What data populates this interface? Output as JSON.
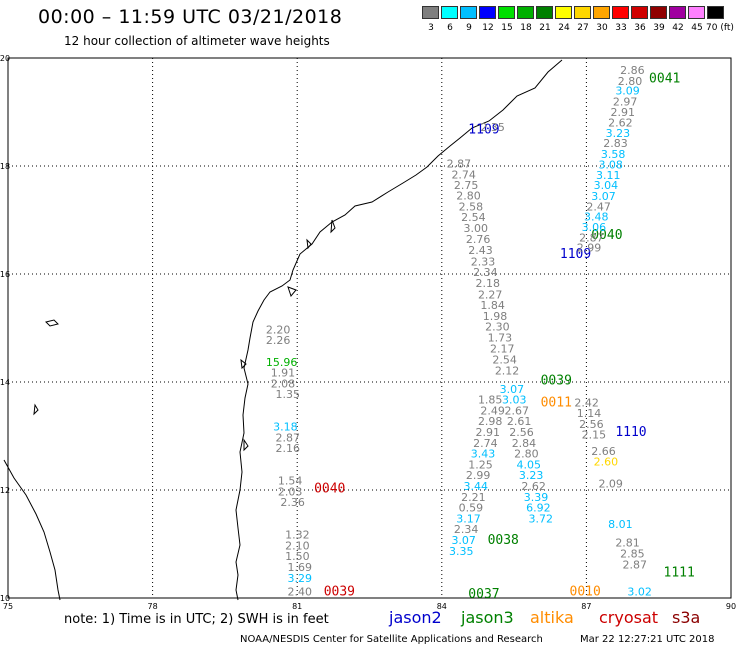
{
  "header": {
    "title": "00:00 – 11:59 UTC 03/21/2018",
    "subtitle": "12 hour collection of altimeter wave heights"
  },
  "color_scale": {
    "labels": [
      "3",
      "6",
      "9",
      "12",
      "15",
      "18",
      "21",
      "24",
      "27",
      "30",
      "33",
      "36",
      "39",
      "42",
      "45",
      "70 (ft)"
    ],
    "colors": [
      "#7f7f7f",
      "#00ffff",
      "#00bfff",
      "#0000ff",
      "#00e000",
      "#00b000",
      "#008000",
      "#ffff00",
      "#ffd700",
      "#ffa500",
      "#ff0000",
      "#d00000",
      "#900000",
      "#a000a0",
      "#ff80ff",
      "#000000"
    ]
  },
  "legend": {
    "jason2": "jason2",
    "jason3": "jason3",
    "altika": "altika",
    "cryosat": "cryosat",
    "s3a": "s3a",
    "colors": {
      "jason2": "#0000cc",
      "jason3": "#008000",
      "altika": "#ff8c00",
      "cryosat": "#cc0000",
      "s3a": "#8b0000"
    }
  },
  "note": "note: 1) Time is in UTC; 2) SWH is in feet",
  "footer": {
    "left": "NOAA/NESDIS Center for Satellite Applications and Research",
    "right": "Mar 22 12:27:21 UTC 2018"
  },
  "chart_data": {
    "type": "map",
    "x_ticks": [
      "75",
      "78",
      "81",
      "84",
      "87",
      "90"
    ],
    "y_ticks": [
      "10",
      "12",
      "14",
      "16",
      "18",
      "20"
    ],
    "xlim": [
      75,
      90
    ],
    "ylim": [
      10,
      20
    ],
    "grid": true,
    "track_labels": [
      {
        "text": "0041",
        "color": "#008000",
        "lon": 88.3,
        "lat": 19.55
      },
      {
        "text": "1109",
        "color": "#0000cc",
        "lon": 84.55,
        "lat": 18.6
      },
      {
        "text": "0040",
        "color": "#008000",
        "lon": 87.1,
        "lat": 16.65
      },
      {
        "text": "1109",
        "color": "#0000cc",
        "lon": 86.45,
        "lat": 16.3
      },
      {
        "text": "0039",
        "color": "#008000",
        "lon": 86.05,
        "lat": 13.95
      },
      {
        "text": "0011",
        "color": "#ff8c00",
        "lon": 86.05,
        "lat": 13.55
      },
      {
        "text": "1110",
        "color": "#0000cc",
        "lon": 87.6,
        "lat": 13.0
      },
      {
        "text": "0040",
        "color": "#cc0000",
        "lon": 81.35,
        "lat": 11.95
      },
      {
        "text": "0038",
        "color": "#008000",
        "lon": 84.95,
        "lat": 11.0
      },
      {
        "text": "1111",
        "color": "#008000",
        "lon": 88.6,
        "lat": 10.4
      },
      {
        "text": "0039",
        "color": "#cc0000",
        "lon": 81.55,
        "lat": 10.05
      },
      {
        "text": "0037",
        "color": "#008000",
        "lon": 84.55,
        "lat": 10.0
      },
      {
        "text": "0010",
        "color": "#ff8c00",
        "lon": 86.65,
        "lat": 10.05
      }
    ],
    "swh_values": [
      {
        "text": "2.86",
        "color": "#7f7f7f",
        "lon": 87.7,
        "lat": 19.7
      },
      {
        "text": "2.80",
        "color": "#7f7f7f",
        "lon": 87.65,
        "lat": 19.5
      },
      {
        "text": "3.09",
        "color": "#00bfff",
        "lon": 87.6,
        "lat": 19.32
      },
      {
        "text": "2.97",
        "color": "#7f7f7f",
        "lon": 87.55,
        "lat": 19.12
      },
      {
        "text": "2.91",
        "color": "#7f7f7f",
        "lon": 87.5,
        "lat": 18.93
      },
      {
        "text": "2.62",
        "color": "#7f7f7f",
        "lon": 87.45,
        "lat": 18.73
      },
      {
        "text": "3.23",
        "color": "#00bfff",
        "lon": 87.4,
        "lat": 18.54
      },
      {
        "text": "2.83",
        "color": "#7f7f7f",
        "lon": 87.35,
        "lat": 18.35
      },
      {
        "text": "3.58",
        "color": "#00bfff",
        "lon": 87.3,
        "lat": 18.15
      },
      {
        "text": "3.08",
        "color": "#00bfff",
        "lon": 87.25,
        "lat": 17.95
      },
      {
        "text": "3.11",
        "color": "#00bfff",
        "lon": 87.2,
        "lat": 17.76
      },
      {
        "text": "3.04",
        "color": "#00bfff",
        "lon": 87.15,
        "lat": 17.57
      },
      {
        "text": "3.07",
        "color": "#00bfff",
        "lon": 87.1,
        "lat": 17.37
      },
      {
        "text": "2.47",
        "color": "#7f7f7f",
        "lon": 87.0,
        "lat": 17.18
      },
      {
        "text": "3.48",
        "color": "#00bfff",
        "lon": 86.95,
        "lat": 16.99
      },
      {
        "text": "3.06",
        "color": "#00bfff",
        "lon": 86.9,
        "lat": 16.8
      },
      {
        "text": "2.87",
        "color": "#7f7f7f",
        "lon": 86.85,
        "lat": 16.6
      },
      {
        "text": "2.99",
        "color": "#7f7f7f",
        "lon": 86.8,
        "lat": 16.42
      },
      {
        "text": "2.35",
        "color": "#7f7f7f",
        "lon": 84.8,
        "lat": 18.65
      },
      {
        "text": "2.87",
        "color": "#7f7f7f",
        "lon": 84.1,
        "lat": 17.97
      },
      {
        "text": "2.74",
        "color": "#7f7f7f",
        "lon": 84.2,
        "lat": 17.77
      },
      {
        "text": "2.75",
        "color": "#7f7f7f",
        "lon": 84.25,
        "lat": 17.57
      },
      {
        "text": "2.80",
        "color": "#7f7f7f",
        "lon": 84.3,
        "lat": 17.38
      },
      {
        "text": "2.58",
        "color": "#7f7f7f",
        "lon": 84.35,
        "lat": 17.18
      },
      {
        "text": "2.54",
        "color": "#7f7f7f",
        "lon": 84.4,
        "lat": 16.98
      },
      {
        "text": "3.00",
        "color": "#7f7f7f",
        "lon": 84.45,
        "lat": 16.78
      },
      {
        "text": "2.76",
        "color": "#7f7f7f",
        "lon": 84.5,
        "lat": 16.57
      },
      {
        "text": "2.43",
        "color": "#7f7f7f",
        "lon": 84.55,
        "lat": 16.37
      },
      {
        "text": "2.33",
        "color": "#7f7f7f",
        "lon": 84.6,
        "lat": 16.16
      },
      {
        "text": "2.34",
        "color": "#7f7f7f",
        "lon": 84.65,
        "lat": 15.96
      },
      {
        "text": "2.18",
        "color": "#7f7f7f",
        "lon": 84.7,
        "lat": 15.76
      },
      {
        "text": "2.27",
        "color": "#7f7f7f",
        "lon": 84.75,
        "lat": 15.55
      },
      {
        "text": "1.84",
        "color": "#7f7f7f",
        "lon": 84.8,
        "lat": 15.35
      },
      {
        "text": "1.98",
        "color": "#7f7f7f",
        "lon": 84.85,
        "lat": 15.15
      },
      {
        "text": "2.30",
        "color": "#7f7f7f",
        "lon": 84.9,
        "lat": 14.95
      },
      {
        "text": "1.73",
        "color": "#7f7f7f",
        "lon": 84.95,
        "lat": 14.75
      },
      {
        "text": "2.17",
        "color": "#7f7f7f",
        "lon": 85.0,
        "lat": 14.55
      },
      {
        "text": "2.54",
        "color": "#7f7f7f",
        "lon": 85.05,
        "lat": 14.34
      },
      {
        "text": "2.12",
        "color": "#7f7f7f",
        "lon": 85.1,
        "lat": 14.14
      },
      {
        "text": "1.85",
        "color": "#7f7f7f",
        "lon": 84.75,
        "lat": 13.6
      },
      {
        "text": "2.49",
        "color": "#7f7f7f",
        "lon": 84.8,
        "lat": 13.4
      },
      {
        "text": "2.98",
        "color": "#7f7f7f",
        "lon": 84.75,
        "lat": 13.2
      },
      {
        "text": "2.91",
        "color": "#7f7f7f",
        "lon": 84.7,
        "lat": 13.0
      },
      {
        "text": "2.74",
        "color": "#7f7f7f",
        "lon": 84.65,
        "lat": 12.8
      },
      {
        "text": "3.43",
        "color": "#00bfff",
        "lon": 84.6,
        "lat": 12.6
      },
      {
        "text": "1.25",
        "color": "#7f7f7f",
        "lon": 84.55,
        "lat": 12.4
      },
      {
        "text": "2.99",
        "color": "#7f7f7f",
        "lon": 84.5,
        "lat": 12.2
      },
      {
        "text": "3.44",
        "color": "#00bfff",
        "lon": 84.45,
        "lat": 12.0
      },
      {
        "text": "2.21",
        "color": "#7f7f7f",
        "lon": 84.4,
        "lat": 11.8
      },
      {
        "text": "0.59",
        "color": "#7f7f7f",
        "lon": 84.35,
        "lat": 11.6
      },
      {
        "text": "3.17",
        "color": "#00bfff",
        "lon": 84.3,
        "lat": 11.4
      },
      {
        "text": "2.34",
        "color": "#7f7f7f",
        "lon": 84.25,
        "lat": 11.2
      },
      {
        "text": "3.07",
        "color": "#00bfff",
        "lon": 84.2,
        "lat": 11.0
      },
      {
        "text": "3.35",
        "color": "#00bfff",
        "lon": 84.15,
        "lat": 10.8
      },
      {
        "text": "3.07",
        "color": "#00bfff",
        "lon": 85.2,
        "lat": 13.8
      },
      {
        "text": "3.03",
        "color": "#00bfff",
        "lon": 85.25,
        "lat": 13.6
      },
      {
        "text": "2.67",
        "color": "#7f7f7f",
        "lon": 85.3,
        "lat": 13.4
      },
      {
        "text": "2.61",
        "color": "#7f7f7f",
        "lon": 85.35,
        "lat": 13.2
      },
      {
        "text": "2.56",
        "color": "#7f7f7f",
        "lon": 85.4,
        "lat": 13.0
      },
      {
        "text": "2.84",
        "color": "#7f7f7f",
        "lon": 85.45,
        "lat": 12.8
      },
      {
        "text": "2.80",
        "color": "#7f7f7f",
        "lon": 85.5,
        "lat": 12.6
      },
      {
        "text": "4.05",
        "color": "#00bfff",
        "lon": 85.55,
        "lat": 12.4
      },
      {
        "text": "3.23",
        "color": "#00bfff",
        "lon": 85.6,
        "lat": 12.2
      },
      {
        "text": "2.62",
        "color": "#7f7f7f",
        "lon": 85.65,
        "lat": 12.0
      },
      {
        "text": "3.39",
        "color": "#00bfff",
        "lon": 85.7,
        "lat": 11.8
      },
      {
        "text": "6.92",
        "color": "#00bfff",
        "lon": 85.75,
        "lat": 11.6
      },
      {
        "text": "3.72",
        "color": "#00bfff",
        "lon": 85.8,
        "lat": 11.4
      },
      {
        "text": "2.42",
        "color": "#7f7f7f",
        "lon": 86.75,
        "lat": 13.55
      },
      {
        "text": "1.14",
        "color": "#7f7f7f",
        "lon": 86.8,
        "lat": 13.35
      },
      {
        "text": "2.56",
        "color": "#7f7f7f",
        "lon": 86.85,
        "lat": 13.15
      },
      {
        "text": "2.15",
        "color": "#7f7f7f",
        "lon": 86.9,
        "lat": 12.95
      },
      {
        "text": "2.66",
        "color": "#7f7f7f",
        "lon": 87.1,
        "lat": 12.65
      },
      {
        "text": "2.60",
        "color": "#ffd700",
        "lon": 87.15,
        "lat": 12.45
      },
      {
        "text": "2.09",
        "color": "#7f7f7f",
        "lon": 87.25,
        "lat": 12.05
      },
      {
        "text": "8.01",
        "color": "#00bfff",
        "lon": 87.45,
        "lat": 11.3
      },
      {
        "text": "2.81",
        "color": "#7f7f7f",
        "lon": 87.6,
        "lat": 10.95
      },
      {
        "text": "2.85",
        "color": "#7f7f7f",
        "lon": 87.7,
        "lat": 10.75
      },
      {
        "text": "2.87",
        "color": "#7f7f7f",
        "lon": 87.75,
        "lat": 10.55
      },
      {
        "text": "3.02",
        "color": "#00bfff",
        "lon": 87.85,
        "lat": 10.05
      },
      {
        "text": "2.20",
        "color": "#7f7f7f",
        "lon": 80.35,
        "lat": 14.9
      },
      {
        "text": "2.26",
        "color": "#7f7f7f",
        "lon": 80.35,
        "lat": 14.7
      },
      {
        "text": "15.96",
        "color": "#00b000",
        "lon": 80.35,
        "lat": 14.3
      },
      {
        "text": "1.91",
        "color": "#7f7f7f",
        "lon": 80.45,
        "lat": 14.1
      },
      {
        "text": "2.08",
        "color": "#7f7f7f",
        "lon": 80.45,
        "lat": 13.9
      },
      {
        "text": "1.35",
        "color": "#7f7f7f",
        "lon": 80.55,
        "lat": 13.7
      },
      {
        "text": "3.18",
        "color": "#00bfff",
        "lon": 80.5,
        "lat": 13.1
      },
      {
        "text": "2.87",
        "color": "#7f7f7f",
        "lon": 80.55,
        "lat": 12.9
      },
      {
        "text": "2.16",
        "color": "#7f7f7f",
        "lon": 80.55,
        "lat": 12.7
      },
      {
        "text": "1.54",
        "color": "#7f7f7f",
        "lon": 80.6,
        "lat": 12.1
      },
      {
        "text": "2.03",
        "color": "#7f7f7f",
        "lon": 80.6,
        "lat": 11.9
      },
      {
        "text": "2.36",
        "color": "#7f7f7f",
        "lon": 80.65,
        "lat": 11.7
      },
      {
        "text": "1.32",
        "color": "#7f7f7f",
        "lon": 80.75,
        "lat": 11.1
      },
      {
        "text": "2.10",
        "color": "#7f7f7f",
        "lon": 80.75,
        "lat": 10.9
      },
      {
        "text": "1.50",
        "color": "#7f7f7f",
        "lon": 80.75,
        "lat": 10.7
      },
      {
        "text": "1.69",
        "color": "#7f7f7f",
        "lon": 80.8,
        "lat": 10.5
      },
      {
        "text": "3.29",
        "color": "#00bfff",
        "lon": 80.8,
        "lat": 10.3
      },
      {
        "text": "2.40",
        "color": "#7f7f7f",
        "lon": 80.8,
        "lat": 10.05
      }
    ]
  }
}
